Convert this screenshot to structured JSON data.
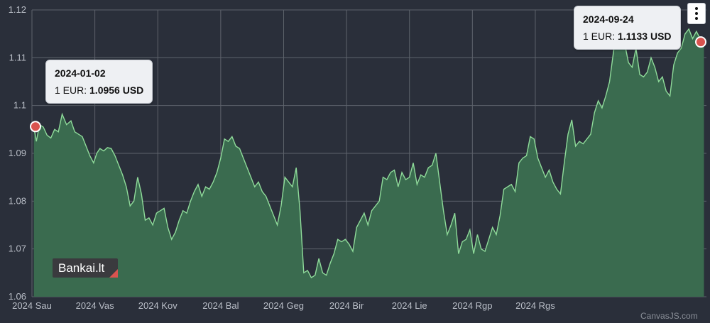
{
  "chart_data": {
    "type": "area",
    "title": "",
    "xlabel": "",
    "ylabel": "",
    "ylim": [
      1.06,
      1.12
    ],
    "y_ticks": [
      "1.06",
      "1.07",
      "1.08",
      "1.09",
      "1.1",
      "1.11",
      "1.12"
    ],
    "x_ticks": [
      "2024 Sau",
      "2024 Vas",
      "2024 Kov",
      "2024 Bal",
      "2024 Geg",
      "2024 Bir",
      "2024 Lie",
      "2024 Rgp",
      "2024 Rgs"
    ],
    "x_range_months": [
      0,
      8.85
    ],
    "grid": true,
    "series": [
      {
        "values": [
          [
            0.03,
            1.0956
          ],
          [
            0.07,
            1.0925
          ],
          [
            0.12,
            1.096
          ],
          [
            0.18,
            1.0955
          ],
          [
            0.24,
            1.0938
          ],
          [
            0.3,
            1.0932
          ],
          [
            0.36,
            1.095
          ],
          [
            0.42,
            1.0945
          ],
          [
            0.48,
            1.0982
          ],
          [
            0.55,
            1.096
          ],
          [
            0.62,
            1.0968
          ],
          [
            0.68,
            1.0945
          ],
          [
            0.74,
            1.094
          ],
          [
            0.8,
            1.0935
          ],
          [
            0.86,
            1.0915
          ],
          [
            0.92,
            1.0895
          ],
          [
            0.98,
            1.088
          ],
          [
            1.03,
            1.09
          ],
          [
            1.08,
            1.091
          ],
          [
            1.14,
            1.0905
          ],
          [
            1.2,
            1.0912
          ],
          [
            1.26,
            1.091
          ],
          [
            1.32,
            1.0895
          ],
          [
            1.38,
            1.0875
          ],
          [
            1.44,
            1.0855
          ],
          [
            1.5,
            1.083
          ],
          [
            1.56,
            1.079
          ],
          [
            1.62,
            1.08
          ],
          [
            1.68,
            1.085
          ],
          [
            1.74,
            1.0815
          ],
          [
            1.8,
            1.076
          ],
          [
            1.86,
            1.0765
          ],
          [
            1.92,
            1.075
          ],
          [
            1.98,
            1.0775
          ],
          [
            2.04,
            1.078
          ],
          [
            2.1,
            1.0785
          ],
          [
            2.16,
            1.0745
          ],
          [
            2.22,
            1.072
          ],
          [
            2.28,
            1.0735
          ],
          [
            2.34,
            1.076
          ],
          [
            2.4,
            1.078
          ],
          [
            2.46,
            1.0775
          ],
          [
            2.52,
            1.08
          ],
          [
            2.58,
            1.082
          ],
          [
            2.64,
            1.0835
          ],
          [
            2.7,
            1.081
          ],
          [
            2.76,
            1.083
          ],
          [
            2.82,
            1.0825
          ],
          [
            2.88,
            1.084
          ],
          [
            2.94,
            1.086
          ],
          [
            3.0,
            1.089
          ],
          [
            3.06,
            1.093
          ],
          [
            3.12,
            1.0925
          ],
          [
            3.18,
            1.0935
          ],
          [
            3.24,
            1.0915
          ],
          [
            3.3,
            1.091
          ],
          [
            3.36,
            1.089
          ],
          [
            3.42,
            1.087
          ],
          [
            3.48,
            1.085
          ],
          [
            3.54,
            1.083
          ],
          [
            3.6,
            1.084
          ],
          [
            3.66,
            1.082
          ],
          [
            3.72,
            1.081
          ],
          [
            3.78,
            1.079
          ],
          [
            3.84,
            1.077
          ],
          [
            3.9,
            1.075
          ],
          [
            3.96,
            1.079
          ],
          [
            4.02,
            1.085
          ],
          [
            4.08,
            1.084
          ],
          [
            4.14,
            1.083
          ],
          [
            4.2,
            1.087
          ],
          [
            4.26,
            1.078
          ],
          [
            4.32,
            1.065
          ],
          [
            4.38,
            1.0655
          ],
          [
            4.44,
            1.064
          ],
          [
            4.5,
            1.0645
          ],
          [
            4.56,
            1.068
          ],
          [
            4.62,
            1.065
          ],
          [
            4.68,
            1.0645
          ],
          [
            4.74,
            1.067
          ],
          [
            4.8,
            1.069
          ],
          [
            4.86,
            1.072
          ],
          [
            4.92,
            1.0715
          ],
          [
            4.98,
            1.072
          ],
          [
            5.04,
            1.071
          ],
          [
            5.1,
            1.0695
          ],
          [
            5.16,
            1.0745
          ],
          [
            5.22,
            1.076
          ],
          [
            5.28,
            1.0775
          ],
          [
            5.34,
            1.075
          ],
          [
            5.4,
            1.078
          ],
          [
            5.46,
            1.079
          ],
          [
            5.52,
            1.08
          ],
          [
            5.58,
            1.085
          ],
          [
            5.64,
            1.0845
          ],
          [
            5.7,
            1.086
          ],
          [
            5.76,
            1.0865
          ],
          [
            5.82,
            1.083
          ],
          [
            5.88,
            1.086
          ],
          [
            5.94,
            1.0845
          ],
          [
            6.0,
            1.085
          ],
          [
            6.06,
            1.088
          ],
          [
            6.12,
            1.0835
          ],
          [
            6.18,
            1.0855
          ],
          [
            6.24,
            1.085
          ],
          [
            6.3,
            1.087
          ],
          [
            6.36,
            1.0875
          ],
          [
            6.42,
            1.09
          ],
          [
            6.48,
            1.084
          ],
          [
            6.54,
            1.078
          ],
          [
            6.6,
            1.073
          ],
          [
            6.66,
            1.075
          ],
          [
            6.72,
            1.0775
          ],
          [
            6.78,
            1.069
          ],
          [
            6.84,
            1.0715
          ],
          [
            6.9,
            1.072
          ],
          [
            6.96,
            1.074
          ],
          [
            7.02,
            1.069
          ],
          [
            7.08,
            1.073
          ],
          [
            7.14,
            1.07
          ],
          [
            7.2,
            1.0695
          ],
          [
            7.26,
            1.072
          ],
          [
            7.32,
            1.0745
          ],
          [
            7.38,
            1.073
          ],
          [
            7.44,
            1.077
          ],
          [
            7.5,
            1.0825
          ],
          [
            7.56,
            1.083
          ],
          [
            7.62,
            1.0835
          ],
          [
            7.68,
            1.082
          ],
          [
            7.74,
            1.088
          ],
          [
            7.8,
            1.089
          ],
          [
            7.86,
            1.0895
          ],
          [
            7.92,
            1.0935
          ],
          [
            7.98,
            1.093
          ],
          [
            8.04,
            1.089
          ],
          [
            8.1,
            1.087
          ],
          [
            8.16,
            1.085
          ],
          [
            8.22,
            1.0865
          ],
          [
            8.28,
            1.084
          ],
          [
            8.34,
            1.0825
          ],
          [
            8.4,
            1.0815
          ],
          [
            8.46,
            1.088
          ],
          [
            8.52,
            1.094
          ],
          [
            8.58,
            1.097
          ],
          [
            8.64,
            1.0915
          ],
          [
            8.7,
            1.0925
          ],
          [
            8.76,
            1.092
          ],
          [
            8.82,
            1.093
          ],
          [
            8.88,
            1.094
          ],
          [
            8.94,
            1.0985
          ],
          [
            9.0,
            1.101
          ],
          [
            9.06,
            1.0995
          ],
          [
            9.12,
            1.102
          ],
          [
            9.18,
            1.105
          ],
          [
            9.24,
            1.111
          ],
          [
            9.3,
            1.116
          ],
          [
            9.36,
            1.115
          ],
          [
            9.42,
            1.113
          ],
          [
            9.48,
            1.109
          ],
          [
            9.54,
            1.108
          ],
          [
            9.6,
            1.112
          ],
          [
            9.66,
            1.1065
          ],
          [
            9.72,
            1.106
          ],
          [
            9.78,
            1.107
          ],
          [
            9.84,
            1.11
          ],
          [
            9.9,
            1.108
          ],
          [
            9.96,
            1.105
          ],
          [
            10.02,
            1.106
          ],
          [
            10.08,
            1.103
          ],
          [
            10.14,
            1.102
          ],
          [
            10.2,
            1.1085
          ],
          [
            10.26,
            1.111
          ],
          [
            10.32,
            1.112
          ],
          [
            10.38,
            1.115
          ],
          [
            10.44,
            1.116
          ],
          [
            10.5,
            1.114
          ],
          [
            10.56,
            1.1155
          ],
          [
            10.62,
            1.114
          ],
          [
            10.68,
            1.1133
          ]
        ]
      }
    ],
    "highlights": [
      {
        "x": 0.0,
        "y": 1.0956
      },
      {
        "x": 10.68,
        "y": 1.1133
      }
    ],
    "colors": {
      "background": "#2a2f3a",
      "grid": "#5e636c",
      "area_fill": "#3a6b4f",
      "line": "#8fdb9a",
      "marker": "#d9534f"
    }
  },
  "tooltip_left": {
    "date": "2024-01-02",
    "prefix": "1 EUR: ",
    "value": "1.0956 USD"
  },
  "tooltip_right": {
    "date": "2024-09-24",
    "prefix": "1 EUR: ",
    "value": "1.1133 USD"
  },
  "watermark_text": "Bankai.lt",
  "credit_text": "CanvasJS.com",
  "menu_icon": "kebab-menu-icon"
}
